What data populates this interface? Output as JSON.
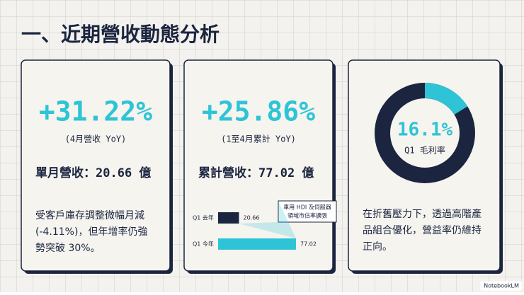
{
  "title": "一、近期營收動態分析",
  "cards": [
    {
      "headline": "+31.22%",
      "sub": "(4月營收 YoY)",
      "metric": "單月營收：20.66 億",
      "body": [
        "受客戶庫存調整微幅月減",
        "(-4.11%)，但年增率仍強",
        "勢突破 30%。"
      ]
    },
    {
      "headline": "+25.86%",
      "sub": "(1至4月累計 YoY)",
      "metric": "累計營收：77.02 億"
    },
    {
      "body": [
        "在折舊壓力下，透過高階產",
        "品組合優化，營益率仍維持",
        "正向。"
      ]
    }
  ],
  "chart_data": [
    {
      "type": "bar",
      "orientation": "horizontal",
      "categories": [
        "Q1 去年",
        "Q1 今年"
      ],
      "values": [
        20.66,
        77.02
      ],
      "colors": [
        "#1b2540",
        "#2ec4d6"
      ],
      "annotation": [
        "車用 HDI 及伺服器",
        "領域市佔率擴張"
      ]
    },
    {
      "type": "donut",
      "values": [
        16.1
      ],
      "value_labels": [
        "16.1%"
      ],
      "label": "Q1 毛利率",
      "color": "#2ec4d6",
      "track_color": "#1b2540"
    }
  ],
  "footer": "NotebookLM"
}
